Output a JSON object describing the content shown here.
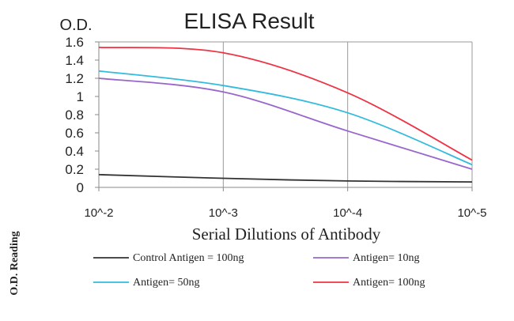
{
  "chart_data": {
    "type": "line",
    "title": "ELISA Result",
    "y_unit_label": "O.D.",
    "xlabel": "Serial Dilutions of Antibody",
    "ylabel": "O.D. Reading",
    "x_scale": "log",
    "x_ticks": [
      {
        "value": 0.01,
        "label": "10^-2"
      },
      {
        "value": 0.001,
        "label": "10^-3"
      },
      {
        "value": 0.0001,
        "label": "10^-4"
      },
      {
        "value": 1e-05,
        "label": "10^-5"
      }
    ],
    "ylim": [
      0,
      1.6
    ],
    "y_ticks": [
      {
        "value": 0,
        "label": "0"
      },
      {
        "value": 0.2,
        "label": "0.2"
      },
      {
        "value": 0.4,
        "label": "0.4"
      },
      {
        "value": 0.6,
        "label": "0.6"
      },
      {
        "value": 0.8,
        "label": "0.8"
      },
      {
        "value": 1.0,
        "label": "1"
      },
      {
        "value": 1.2,
        "label": "1.2"
      },
      {
        "value": 1.4,
        "label": "1.4"
      },
      {
        "value": 1.6,
        "label": "1.6"
      }
    ],
    "grid": "vertical",
    "legend_position": "bottom",
    "x": [
      0.01,
      0.001,
      0.0001,
      1e-05
    ],
    "series": [
      {
        "name": "Control Antigen = 100ng",
        "color": "#333333",
        "values": [
          0.14,
          0.1,
          0.07,
          0.06
        ]
      },
      {
        "name": "Antigen= 10ng",
        "color": "#9966cc",
        "values": [
          1.2,
          1.05,
          0.62,
          0.2
        ]
      },
      {
        "name": "Antigen= 50ng",
        "color": "#33bbdd",
        "values": [
          1.28,
          1.12,
          0.82,
          0.25
        ]
      },
      {
        "name": "Antigen= 100ng",
        "color": "#ee3344",
        "values": [
          1.54,
          1.48,
          1.04,
          0.3
        ]
      }
    ]
  }
}
